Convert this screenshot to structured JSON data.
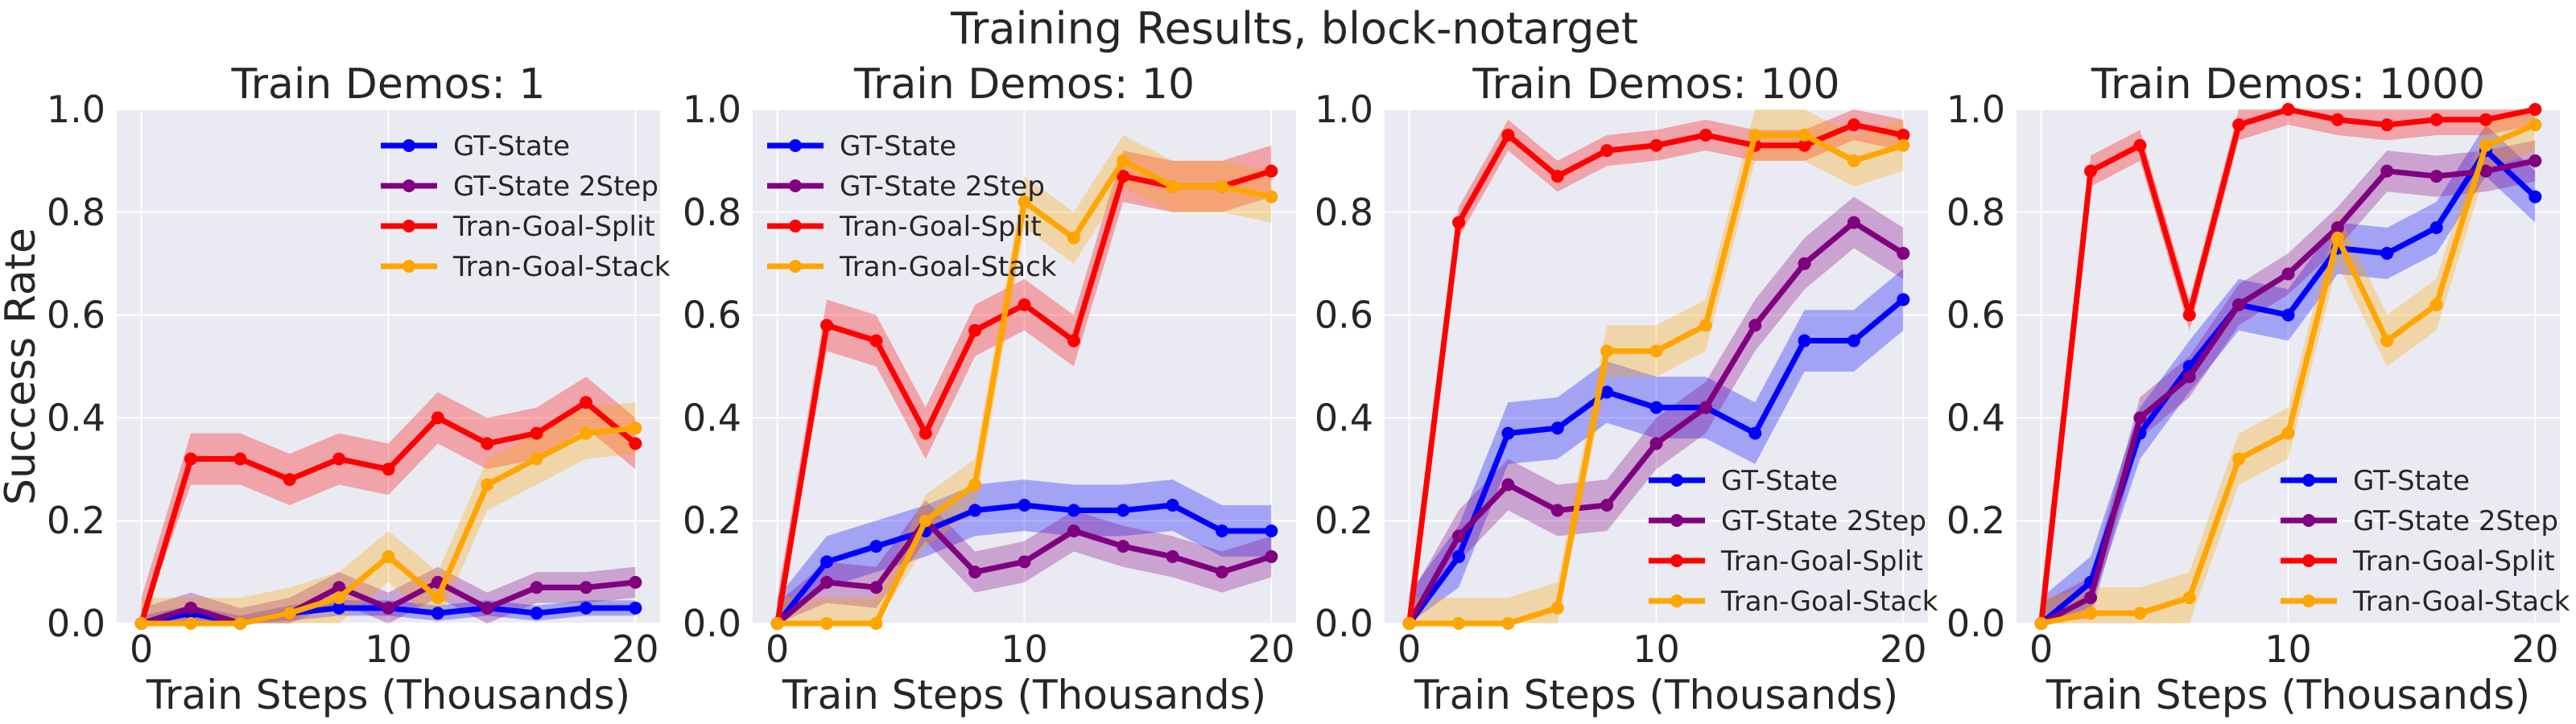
{
  "suptitle": "Training Results, block-notarget",
  "colors": {
    "GT-State": "#0000ff",
    "GT-State 2Step": "#800080",
    "Tran-Goal-Split": "#ff0000",
    "Tran-Goal-Stack": "#ffa500",
    "plot_bg": "#eaeaf2",
    "grid": "#ffffff"
  },
  "chart_data": [
    {
      "type": "line",
      "title": "Train Demos: 1",
      "xlabel": "Train Steps (Thousands)",
      "ylabel": "Success Rate",
      "xlim": [
        -1,
        21
      ],
      "ylim": [
        0,
        1.0
      ],
      "xticks": [
        0,
        10,
        20
      ],
      "yticks": [
        0.0,
        0.2,
        0.4,
        0.6,
        0.8,
        1.0
      ],
      "x": [
        0,
        2,
        4,
        6,
        8,
        10,
        12,
        14,
        16,
        18,
        20
      ],
      "legend_loc": "upper right",
      "series": [
        {
          "name": "GT-State",
          "values": [
            0,
            0.02,
            0,
            0.02,
            0.03,
            0.03,
            0.02,
            0.03,
            0.02,
            0.03,
            0.03
          ],
          "band": 0.015
        },
        {
          "name": "GT-State 2Step",
          "values": [
            0,
            0.03,
            0,
            0.02,
            0.07,
            0.03,
            0.08,
            0.03,
            0.07,
            0.07,
            0.08
          ],
          "band": 0.03
        },
        {
          "name": "Tran-Goal-Split",
          "values": [
            0,
            0.32,
            0.32,
            0.28,
            0.32,
            0.3,
            0.4,
            0.35,
            0.37,
            0.43,
            0.35
          ],
          "band": 0.05
        },
        {
          "name": "Tran-Goal-Stack",
          "values": [
            0,
            0,
            0,
            0.02,
            0.05,
            0.13,
            0.05,
            0.27,
            0.32,
            0.37,
            0.38
          ],
          "band": 0.05
        }
      ]
    },
    {
      "type": "line",
      "title": "Train Demos: 10",
      "xlabel": "Train Steps (Thousands)",
      "ylabel": "",
      "xlim": [
        -1,
        21
      ],
      "ylim": [
        0,
        1.0
      ],
      "xticks": [
        0,
        10,
        20
      ],
      "yticks": [
        0.0,
        0.2,
        0.4,
        0.6,
        0.8,
        1.0
      ],
      "x": [
        0,
        2,
        4,
        6,
        8,
        10,
        12,
        14,
        16,
        18,
        20
      ],
      "legend_loc": "upper left",
      "series": [
        {
          "name": "GT-State",
          "values": [
            0,
            0.12,
            0.15,
            0.18,
            0.22,
            0.23,
            0.22,
            0.22,
            0.23,
            0.18,
            0.18
          ],
          "band": 0.05
        },
        {
          "name": "GT-State 2Step",
          "values": [
            0,
            0.08,
            0.07,
            0.2,
            0.1,
            0.12,
            0.18,
            0.15,
            0.13,
            0.1,
            0.13
          ],
          "band": 0.04
        },
        {
          "name": "Tran-Goal-Split",
          "values": [
            0,
            0.58,
            0.55,
            0.37,
            0.57,
            0.62,
            0.55,
            0.87,
            0.85,
            0.85,
            0.88
          ],
          "band": 0.05
        },
        {
          "name": "Tran-Goal-Stack",
          "values": [
            0,
            0,
            0,
            0.2,
            0.27,
            0.82,
            0.75,
            0.9,
            0.85,
            0.85,
            0.83
          ],
          "band": 0.05
        }
      ]
    },
    {
      "type": "line",
      "title": "Train Demos: 100",
      "xlabel": "Train Steps (Thousands)",
      "ylabel": "",
      "xlim": [
        -1,
        21
      ],
      "ylim": [
        0,
        1.0
      ],
      "xticks": [
        0,
        10,
        20
      ],
      "yticks": [
        0.0,
        0.2,
        0.4,
        0.6,
        0.8,
        1.0
      ],
      "x": [
        0,
        2,
        4,
        6,
        8,
        10,
        12,
        14,
        16,
        18,
        20
      ],
      "legend_loc": "lower right",
      "series": [
        {
          "name": "GT-State",
          "values": [
            0,
            0.13,
            0.37,
            0.38,
            0.45,
            0.42,
            0.42,
            0.37,
            0.55,
            0.55,
            0.63
          ],
          "band": 0.06
        },
        {
          "name": "GT-State 2Step",
          "values": [
            0,
            0.17,
            0.27,
            0.22,
            0.23,
            0.35,
            0.42,
            0.58,
            0.7,
            0.78,
            0.72
          ],
          "band": 0.05
        },
        {
          "name": "Tran-Goal-Split",
          "values": [
            0,
            0.78,
            0.95,
            0.87,
            0.92,
            0.93,
            0.95,
            0.93,
            0.93,
            0.97,
            0.95
          ],
          "band": 0.03
        },
        {
          "name": "Tran-Goal-Stack",
          "values": [
            0,
            0,
            0,
            0.03,
            0.53,
            0.53,
            0.58,
            0.95,
            0.95,
            0.9,
            0.93
          ],
          "band": 0.05
        }
      ]
    },
    {
      "type": "line",
      "title": "Train Demos: 1000",
      "xlabel": "Train Steps (Thousands)",
      "ylabel": "",
      "xlim": [
        -1,
        21
      ],
      "ylim": [
        0,
        1.0
      ],
      "xticks": [
        0,
        10,
        20
      ],
      "yticks": [
        0.0,
        0.2,
        0.4,
        0.6,
        0.8,
        1.0
      ],
      "x": [
        0,
        2,
        4,
        6,
        8,
        10,
        12,
        14,
        16,
        18,
        20
      ],
      "legend_loc": "lower right",
      "series": [
        {
          "name": "GT-State",
          "values": [
            0,
            0.08,
            0.37,
            0.5,
            0.62,
            0.6,
            0.73,
            0.72,
            0.77,
            0.92,
            0.83
          ],
          "band": 0.05
        },
        {
          "name": "GT-State 2Step",
          "values": [
            0,
            0.05,
            0.4,
            0.48,
            0.62,
            0.68,
            0.77,
            0.88,
            0.87,
            0.88,
            0.9
          ],
          "band": 0.04
        },
        {
          "name": "Tran-Goal-Split",
          "values": [
            0,
            0.88,
            0.93,
            0.6,
            0.97,
            1.0,
            0.98,
            0.97,
            0.98,
            0.98,
            1.0
          ],
          "band": 0.03
        },
        {
          "name": "Tran-Goal-Stack",
          "values": [
            0,
            0.02,
            0.02,
            0.05,
            0.32,
            0.37,
            0.75,
            0.55,
            0.62,
            0.93,
            0.97
          ],
          "band": 0.05
        }
      ]
    }
  ]
}
